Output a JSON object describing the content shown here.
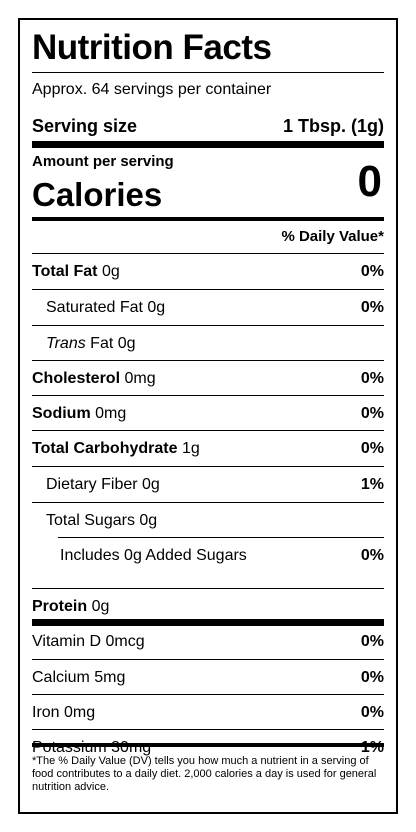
{
  "title": "Nutrition Facts",
  "servings": "Approx. 64 servings per container",
  "serving_size": {
    "label": "Serving size",
    "value": "1 Tbsp. (1g)"
  },
  "amount_per_serving": "Amount per serving",
  "calories": {
    "label": "Calories",
    "value": "0"
  },
  "daily_value_header": "% Daily Value*",
  "nutrients": [
    {
      "name": "Total Fat",
      "amount": "0g",
      "dv": "0%"
    },
    {
      "name": "Saturated Fat",
      "amount": "0g",
      "dv": "0%"
    },
    {
      "name": "Trans",
      "name_suffix": "Fat",
      "amount": "0g",
      "dv": ""
    },
    {
      "name": "Cholesterol",
      "amount": "0mg",
      "dv": "0%"
    },
    {
      "name": "Sodium",
      "amount": "0mg",
      "dv": "0%"
    },
    {
      "name": "Total Carbohydrate",
      "amount": "1g",
      "dv": "0%"
    },
    {
      "name": "Dietary Fiber",
      "amount": "0g",
      "dv": "1%"
    },
    {
      "name": "Total Sugars",
      "amount": "0g",
      "dv": ""
    },
    {
      "name": "Includes 0g Added Sugars",
      "amount": "",
      "dv": "0%"
    },
    {
      "name": "Protein",
      "amount": "0g",
      "dv": ""
    }
  ],
  "vitamins": [
    {
      "name": "Vitamin D",
      "amount": "0mcg",
      "dv": "0%"
    },
    {
      "name": "Calcium",
      "amount": "5mg",
      "dv": "0%"
    },
    {
      "name": "Iron",
      "amount": "0mg",
      "dv": "0%"
    },
    {
      "name": "Potassium",
      "amount": "30mg",
      "dv": "1%"
    }
  ],
  "footnote": "*The % Daily Value (DV) tells you how much a nutrient in a serving of food contributes to a daily diet. 2,000 calories a day is used for general nutrition advice."
}
